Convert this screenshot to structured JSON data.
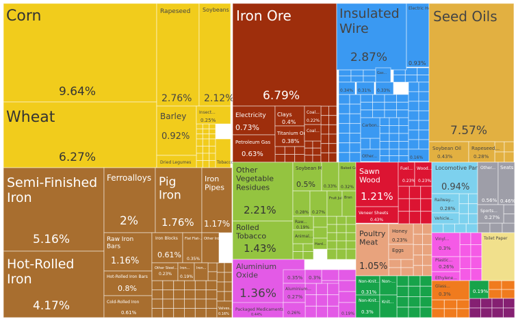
{
  "chart_data": {
    "type": "treemap",
    "title": "",
    "colors": {
      "vegetable": "#f1cc1c",
      "metals": "#a86e2f",
      "mineral": "#9e2e0c",
      "machines": "#3a99f2",
      "animal_veg_fat": "#e2b041",
      "foodstuffs": "#94c440",
      "precious": "#dc1432",
      "animal": "#e8a37d",
      "chemicals": "#e35ae6",
      "textiles": "#17a34a",
      "transport": "#7dd1ee",
      "misc": "#9e9ea8",
      "plastics": "#f55ae6",
      "paper": "#f1e08c",
      "stone": "#f07b1e",
      "instruments": "#852072"
    },
    "cells": [
      {
        "label": "Corn",
        "value": "9.64%"
      },
      {
        "label": "Wheat",
        "value": "6.27%"
      },
      {
        "label": "Rapeseed",
        "value": "2.76%"
      },
      {
        "label": "Soybeans",
        "value": "2.12%"
      },
      {
        "label": "Barley",
        "value": "0.92%"
      },
      {
        "label": "Insect...",
        "value": "0.25%"
      },
      {
        "label": "Dried Legumes",
        "value": ""
      },
      {
        "label": "Tobacco",
        "value": ""
      },
      {
        "label": "Iron Ore",
        "value": "6.79%"
      },
      {
        "label": "Electricity",
        "value": "0.73%"
      },
      {
        "label": "Clays",
        "value": "0.4%"
      },
      {
        "label": "Coal...",
        "value": "0.22%"
      },
      {
        "label": "Petroleum Gas",
        "value": "0.63%"
      },
      {
        "label": "Titanium Ore",
        "value": "0.38%"
      },
      {
        "label": "Coal...",
        "value": ""
      },
      {
        "label": "Insulated Wire",
        "value": "2.87%"
      },
      {
        "label": "Electric Heaters",
        "value": "0.93%"
      },
      {
        "label": "Gas...",
        "value": ""
      },
      {
        "label": "",
        "value": "0.34%"
      },
      {
        "label": "",
        "value": "0.31%"
      },
      {
        "label": "",
        "value": "0.33%"
      },
      {
        "label": "Carbon...",
        "value": ""
      },
      {
        "label": "Other...",
        "value": ""
      },
      {
        "label": "",
        "value": "0.16%"
      },
      {
        "label": "Seed Oils",
        "value": "7.57%"
      },
      {
        "label": "Soybean Oil",
        "value": "0.43%"
      },
      {
        "label": "Rapeseed...",
        "value": "0.28%"
      },
      {
        "label": "Semi-Finished Iron",
        "value": "5.16%"
      },
      {
        "label": "Hot-Rolled Iron",
        "value": "4.17%"
      },
      {
        "label": "Ferroalloys",
        "value": "2%"
      },
      {
        "label": "Pig Iron",
        "value": "1.76%"
      },
      {
        "label": "Iron Pipes",
        "value": "1.17%"
      },
      {
        "label": "Raw Iron Bars",
        "value": "1.16%"
      },
      {
        "label": "Iron Blocks",
        "value": "0.61%"
      },
      {
        "label": "Flat Flat-...",
        "value": "0.35%"
      },
      {
        "label": "Other Iron...",
        "value": ""
      },
      {
        "label": "Hot-Rolled Iron Bars",
        "value": "0.8%"
      },
      {
        "label": "Other Steel...",
        "value": "0.23%"
      },
      {
        "label": "Iron...",
        "value": "0.19%"
      },
      {
        "label": "Iron...",
        "value": ""
      },
      {
        "label": "Cold-Rolled Iron",
        "value": "0.61%"
      },
      {
        "label": "Valves...",
        "value": "0.16%"
      },
      {
        "label": "Other Vegetable Residues",
        "value": "2.21%"
      },
      {
        "label": "Rolled Tobacco",
        "value": "1.43%"
      },
      {
        "label": "Soybean Meal",
        "value": "0.5%"
      },
      {
        "label": "",
        "value": "0.33%"
      },
      {
        "label": "Baked Goods",
        "value": "0.32%"
      },
      {
        "label": "",
        "value": "0.28%"
      },
      {
        "label": "",
        "value": "0.27%"
      },
      {
        "label": "Fruit Juice",
        "value": ""
      },
      {
        "label": "Bran",
        "value": ""
      },
      {
        "label": "Raw...",
        "value": "0.19%"
      },
      {
        "label": "Animal...",
        "value": ""
      },
      {
        "label": "Hard...",
        "value": ""
      },
      {
        "label": "Sawn Wood",
        "value": "1.21%"
      },
      {
        "label": "Fuel...",
        "value": "0.23%"
      },
      {
        "label": "Wood...",
        "value": "0.23%"
      },
      {
        "label": "Veneer Sheets",
        "value": "0.43%"
      },
      {
        "label": "Poultry Meat",
        "value": "1.05%"
      },
      {
        "label": "Honey",
        "value": "0.23%"
      },
      {
        "label": "Eggs",
        "value": ""
      },
      {
        "label": "Aluminium Oxide",
        "value": "1.36%"
      },
      {
        "label": "",
        "value": "0.35%"
      },
      {
        "label": "",
        "value": "0.3%"
      },
      {
        "label": "Aluminium...",
        "value": "0.27%"
      },
      {
        "label": "Packaged Medicaments",
        "value": "0.44%"
      },
      {
        "label": "",
        "value": "0.26%"
      },
      {
        "label": "",
        "value": "0.19%"
      },
      {
        "label": "Non-Knit...",
        "value": "0.31%"
      },
      {
        "label": "Non-...",
        "value": ""
      },
      {
        "label": "Non-Knit...",
        "value": "0.3%"
      },
      {
        "label": "Knit...",
        "value": ""
      },
      {
        "label": "Locomotive Parts",
        "value": "0.94%"
      },
      {
        "label": "Railway...",
        "value": "0.28%"
      },
      {
        "label": "Vehicle...",
        "value": ""
      },
      {
        "label": "Other...",
        "value": "0.56%"
      },
      {
        "label": "Seats",
        "value": "0.46%"
      },
      {
        "label": "Sports...",
        "value": "0.27%"
      },
      {
        "label": "Vinyl...",
        "value": "0.3%"
      },
      {
        "label": "Plastic...",
        "value": "0.26%"
      },
      {
        "label": "Ethylene...",
        "value": ""
      },
      {
        "label": "Toilet Paper",
        "value": ""
      },
      {
        "label": "Glass...",
        "value": "0.3%"
      },
      {
        "label": "",
        "value": "0.19%"
      }
    ]
  }
}
